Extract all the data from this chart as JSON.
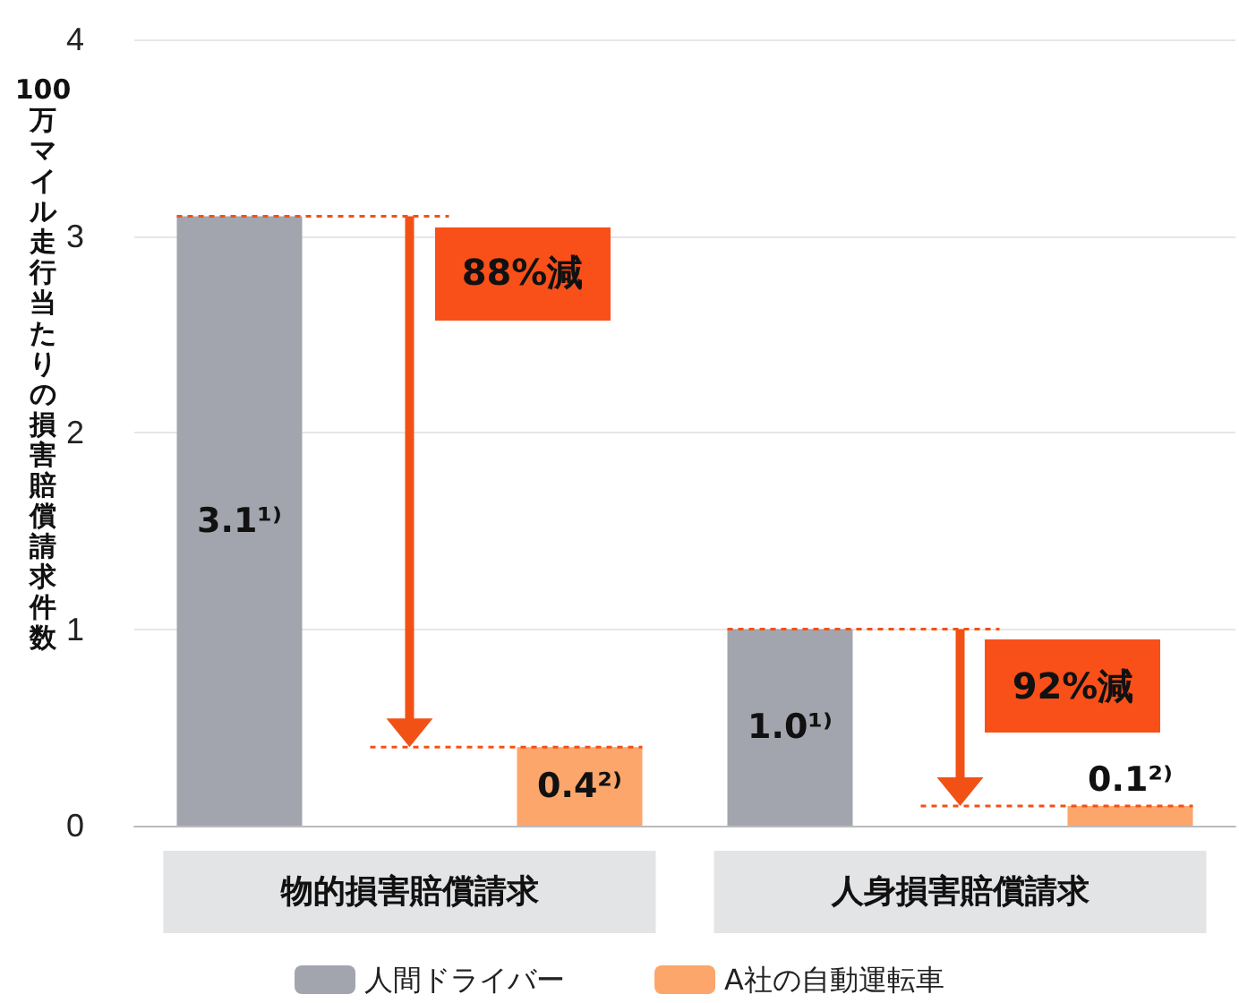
{
  "chart_data": {
    "type": "bar",
    "ylabel": "100万マイル走行当たりの損害賠償請求件数",
    "categories": [
      "物的損害賠償請求",
      "人身損害賠償請求"
    ],
    "series": [
      {
        "name": "人間ドライバー",
        "color": "#a2a5ae",
        "values": [
          3.1,
          1.0
        ],
        "value_labels": [
          "3.1¹⁾",
          "1.0¹⁾"
        ]
      },
      {
        "name": "A社の自動運転車",
        "color": "#fca66b",
        "values": [
          0.4,
          0.1
        ],
        "value_labels": [
          "0.4²⁾",
          "0.1²⁾"
        ]
      }
    ],
    "ylim": [
      0,
      4
    ],
    "yticks": [
      0,
      1,
      2,
      3,
      4
    ],
    "grid": "y",
    "legend": "bottom",
    "annotations": [
      "88%減",
      "92%減"
    ],
    "ref_lines": [
      {
        "axis": "y",
        "value": 3.1,
        "color": "#f25116",
        "line_style": "dotted"
      },
      {
        "axis": "y",
        "value": 0.4,
        "color": "#f25116",
        "line_style": "dotted"
      },
      {
        "axis": "y",
        "value": 1.0,
        "color": "#f25116",
        "line_style": "dotted"
      },
      {
        "axis": "y",
        "value": 0.1,
        "color": "#f25116",
        "line_style": "dotted"
      }
    ]
  }
}
